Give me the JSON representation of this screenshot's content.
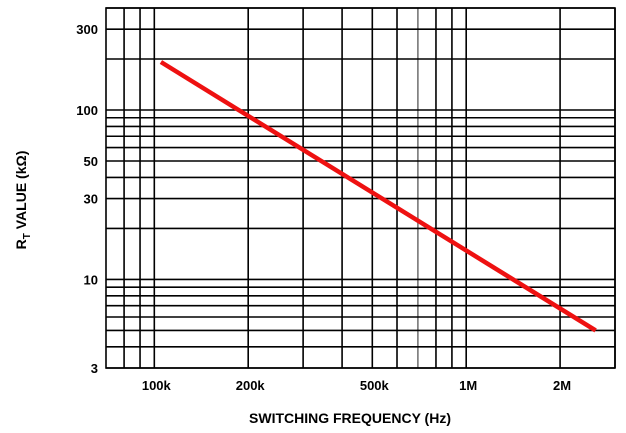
{
  "chart_data": {
    "type": "line",
    "title": "",
    "xlabel": "SWITCHING FREQUENCY (Hz)",
    "ylabel": {
      "prefix": "R",
      "subscript": "T",
      "suffix": " VALUE (kΩ)"
    },
    "x_scale": "log",
    "y_scale": "log",
    "xlim": [
      70000,
      3000000
    ],
    "ylim": [
      3,
      400
    ],
    "grid": true,
    "legend": "none",
    "x_ticks": [
      {
        "value": 100000,
        "label": "100k"
      },
      {
        "value": 200000,
        "label": "200k"
      },
      {
        "value": 500000,
        "label": "500k"
      },
      {
        "value": 1000000,
        "label": "1M"
      },
      {
        "value": 2000000,
        "label": "2M"
      }
    ],
    "y_ticks": [
      {
        "value": 3,
        "label": "3"
      },
      {
        "value": 10,
        "label": "10"
      },
      {
        "value": 30,
        "label": "30"
      },
      {
        "value": 50,
        "label": "50"
      },
      {
        "value": 100,
        "label": "100"
      },
      {
        "value": 300,
        "label": "300"
      }
    ],
    "x_grid": [
      80000,
      90000,
      100000,
      200000,
      300000,
      400000,
      500000,
      600000,
      700000,
      800000,
      900000,
      1000000,
      2000000,
      3000000
    ],
    "y_grid": [
      3,
      4,
      5,
      6,
      7,
      8,
      9,
      10,
      20,
      30,
      40,
      50,
      60,
      70,
      80,
      90,
      100,
      200,
      300,
      400
    ],
    "series": [
      {
        "color": "#ee1111",
        "x": [
          105000,
          2600000
        ],
        "y": [
          192,
          5
        ]
      }
    ]
  }
}
